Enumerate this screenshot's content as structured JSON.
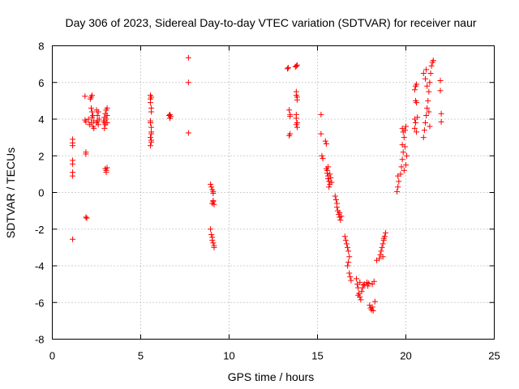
{
  "chart_data": {
    "type": "scatter",
    "title": "Day 306 of 2023, Sidereal Day-to-day VTEC variation (SDTVAR) for receiver naur",
    "xlabel": "GPS time / hours",
    "ylabel": "SDTVAR / TECUs",
    "xlim": [
      0,
      25
    ],
    "ylim": [
      -8,
      8
    ],
    "xticks": [
      0,
      5,
      10,
      15,
      20,
      25
    ],
    "yticks": [
      -8,
      -6,
      -4,
      -2,
      0,
      2,
      4,
      6,
      8
    ],
    "xtick_labels": [
      "0",
      "5",
      "10",
      "15",
      "20",
      "25"
    ],
    "ytick_labels": [
      "-8",
      "-6",
      "-4",
      "-2",
      "0",
      "2",
      "4",
      "6",
      "8"
    ],
    "grid": true,
    "marker": "+",
    "color": "#ff0000",
    "series": [
      {
        "name": "naur",
        "points": [
          [
            1.15,
            2.9
          ],
          [
            1.15,
            2.7
          ],
          [
            1.15,
            2.55
          ],
          [
            1.15,
            1.75
          ],
          [
            1.15,
            1.55
          ],
          [
            1.15,
            1.1
          ],
          [
            1.15,
            0.9
          ],
          [
            1.15,
            -2.55
          ],
          [
            1.85,
            5.25
          ],
          [
            1.85,
            3.95
          ],
          [
            1.9,
            3.85
          ],
          [
            1.9,
            2.2
          ],
          [
            1.9,
            2.1
          ],
          [
            1.9,
            -1.35
          ],
          [
            1.95,
            -1.4
          ],
          [
            2.05,
            4.0
          ],
          [
            2.1,
            3.7
          ],
          [
            2.15,
            5.1
          ],
          [
            2.2,
            5.2
          ],
          [
            2.25,
            5.3
          ],
          [
            2.2,
            4.6
          ],
          [
            2.25,
            4.4
          ],
          [
            2.25,
            4.1
          ],
          [
            2.2,
            3.8
          ],
          [
            2.3,
            3.6
          ],
          [
            2.35,
            3.9
          ],
          [
            2.3,
            4.2
          ],
          [
            2.35,
            3.5
          ],
          [
            2.5,
            4.5
          ],
          [
            2.55,
            4.2
          ],
          [
            2.55,
            3.9
          ],
          [
            2.6,
            4.4
          ],
          [
            2.65,
            4.0
          ],
          [
            2.5,
            3.8
          ],
          [
            2.6,
            3.7
          ],
          [
            2.9,
            3.9
          ],
          [
            2.95,
            4.1
          ],
          [
            2.95,
            3.8
          ],
          [
            3.0,
            4.3
          ],
          [
            3.05,
            4.5
          ],
          [
            3.05,
            4.0
          ],
          [
            3.1,
            4.6
          ],
          [
            3.1,
            4.2
          ],
          [
            3.0,
            3.7
          ],
          [
            2.95,
            3.5
          ],
          [
            3.1,
            3.8
          ],
          [
            3.0,
            1.3
          ],
          [
            3.05,
            1.2
          ],
          [
            3.05,
            1.1
          ],
          [
            3.1,
            1.35
          ],
          [
            5.55,
            5.3
          ],
          [
            5.55,
            5.1
          ],
          [
            5.55,
            4.9
          ],
          [
            5.6,
            4.6
          ],
          [
            5.6,
            4.4
          ],
          [
            5.6,
            5.2
          ],
          [
            5.55,
            3.9
          ],
          [
            5.55,
            3.8
          ],
          [
            5.6,
            3.55
          ],
          [
            5.6,
            3.3
          ],
          [
            5.6,
            3.2
          ],
          [
            5.55,
            3.0
          ],
          [
            5.6,
            2.85
          ],
          [
            5.6,
            2.75
          ],
          [
            5.55,
            2.55
          ],
          [
            6.6,
            4.2
          ],
          [
            6.65,
            4.05
          ],
          [
            6.7,
            4.15
          ],
          [
            6.65,
            4.25
          ],
          [
            7.7,
            7.35
          ],
          [
            7.7,
            6.0
          ],
          [
            7.7,
            3.25
          ],
          [
            8.95,
            0.45
          ],
          [
            9.0,
            0.3
          ],
          [
            9.05,
            0.15
          ],
          [
            9.1,
            0.05
          ],
          [
            9.1,
            -0.05
          ],
          [
            9.1,
            -0.5
          ],
          [
            9.05,
            -0.6
          ],
          [
            9.15,
            -0.65
          ],
          [
            9.1,
            -0.45
          ],
          [
            8.95,
            -2.0
          ],
          [
            9.0,
            -2.3
          ],
          [
            9.05,
            -2.45
          ],
          [
            9.05,
            -2.6
          ],
          [
            9.1,
            -2.75
          ],
          [
            9.15,
            -2.9
          ],
          [
            9.15,
            -3.0
          ],
          [
            13.3,
            6.75
          ],
          [
            13.35,
            6.8
          ],
          [
            13.4,
            4.5
          ],
          [
            13.45,
            4.25
          ],
          [
            13.45,
            4.15
          ],
          [
            13.45,
            3.2
          ],
          [
            13.4,
            3.1
          ],
          [
            13.75,
            6.85
          ],
          [
            13.8,
            6.9
          ],
          [
            13.85,
            6.95
          ],
          [
            13.8,
            5.5
          ],
          [
            13.8,
            5.3
          ],
          [
            13.85,
            5.2
          ],
          [
            13.85,
            5.05
          ],
          [
            13.8,
            4.25
          ],
          [
            13.8,
            4.05
          ],
          [
            13.85,
            3.8
          ],
          [
            13.8,
            3.7
          ],
          [
            13.85,
            3.55
          ],
          [
            15.2,
            4.25
          ],
          [
            15.2,
            3.2
          ],
          [
            15.25,
            2.0
          ],
          [
            15.3,
            1.85
          ],
          [
            15.45,
            2.8
          ],
          [
            15.5,
            2.65
          ],
          [
            15.5,
            1.3
          ],
          [
            15.55,
            1.2
          ],
          [
            15.55,
            1.05
          ],
          [
            15.6,
            0.9
          ],
          [
            15.6,
            0.75
          ],
          [
            15.65,
            0.6
          ],
          [
            15.7,
            0.45
          ],
          [
            15.6,
            1.4
          ],
          [
            15.7,
            1.0
          ],
          [
            15.75,
            0.8
          ],
          [
            15.8,
            0.55
          ],
          [
            15.65,
            0.3
          ],
          [
            16.0,
            -0.2
          ],
          [
            16.05,
            -0.4
          ],
          [
            16.1,
            -0.6
          ],
          [
            16.1,
            -0.8
          ],
          [
            16.15,
            -1.0
          ],
          [
            16.2,
            -1.2
          ],
          [
            16.25,
            -1.35
          ],
          [
            16.3,
            -1.5
          ],
          [
            16.25,
            -1.1
          ],
          [
            16.35,
            -1.3
          ],
          [
            16.55,
            -2.4
          ],
          [
            16.6,
            -2.6
          ],
          [
            16.65,
            -2.8
          ],
          [
            16.7,
            -3.0
          ],
          [
            16.75,
            -3.2
          ],
          [
            16.8,
            -3.5
          ],
          [
            16.75,
            -3.8
          ],
          [
            16.7,
            -4.0
          ],
          [
            16.8,
            -4.4
          ],
          [
            16.85,
            -4.6
          ],
          [
            16.9,
            -4.8
          ],
          [
            17.2,
            -4.7
          ],
          [
            17.25,
            -5.0
          ],
          [
            17.3,
            -5.2
          ],
          [
            17.35,
            -5.5
          ],
          [
            17.4,
            -5.7
          ],
          [
            17.45,
            -5.85
          ],
          [
            17.3,
            -5.6
          ],
          [
            17.5,
            -5.4
          ],
          [
            17.55,
            -5.2
          ],
          [
            17.6,
            -5.05
          ],
          [
            17.4,
            -4.9
          ],
          [
            17.65,
            -5.0
          ],
          [
            17.8,
            -4.9
          ],
          [
            17.85,
            -5.1
          ],
          [
            17.9,
            -4.95
          ],
          [
            17.95,
            -6.15
          ],
          [
            18.0,
            -6.3
          ],
          [
            18.05,
            -6.4
          ],
          [
            18.1,
            -6.25
          ],
          [
            18.15,
            -6.45
          ],
          [
            18.1,
            -5.0
          ],
          [
            18.2,
            -4.85
          ],
          [
            18.25,
            -5.95
          ],
          [
            18.35,
            -3.7
          ],
          [
            18.5,
            -3.6
          ],
          [
            18.55,
            -3.4
          ],
          [
            18.6,
            -3.2
          ],
          [
            18.65,
            -3.0
          ],
          [
            18.7,
            -2.8
          ],
          [
            18.75,
            -2.6
          ],
          [
            18.8,
            -2.4
          ],
          [
            18.85,
            -2.2
          ],
          [
            18.7,
            -3.5
          ],
          [
            18.75,
            -2.5
          ],
          [
            19.5,
            0.05
          ],
          [
            19.55,
            0.3
          ],
          [
            19.6,
            0.6
          ],
          [
            19.55,
            0.9
          ],
          [
            19.7,
            1.0
          ],
          [
            19.75,
            1.4
          ],
          [
            19.8,
            1.8
          ],
          [
            19.85,
            2.2
          ],
          [
            19.8,
            2.6
          ],
          [
            19.9,
            3.0
          ],
          [
            19.95,
            3.4
          ],
          [
            20.0,
            3.6
          ],
          [
            19.85,
            3.3
          ],
          [
            19.95,
            2.5
          ],
          [
            20.05,
            2.0
          ],
          [
            20.0,
            1.5
          ],
          [
            19.9,
            1.2
          ],
          [
            19.8,
            3.5
          ],
          [
            20.5,
            5.6
          ],
          [
            20.55,
            5.8
          ],
          [
            20.6,
            5.9
          ],
          [
            20.55,
            5.0
          ],
          [
            20.6,
            4.9
          ],
          [
            20.5,
            4.0
          ],
          [
            20.55,
            3.8
          ],
          [
            20.5,
            3.5
          ],
          [
            20.6,
            3.3
          ],
          [
            20.65,
            4.1
          ],
          [
            21.0,
            3.0
          ],
          [
            21.05,
            3.4
          ],
          [
            21.1,
            3.8
          ],
          [
            21.15,
            4.2
          ],
          [
            21.2,
            4.6
          ],
          [
            21.25,
            5.0
          ],
          [
            21.3,
            5.5
          ],
          [
            21.35,
            6.0
          ],
          [
            21.4,
            6.5
          ],
          [
            21.45,
            6.9
          ],
          [
            21.5,
            7.1
          ],
          [
            21.55,
            7.2
          ],
          [
            21.1,
            6.2
          ],
          [
            21.15,
            6.7
          ],
          [
            21.2,
            5.8
          ],
          [
            21.3,
            4.4
          ],
          [
            21.35,
            3.6
          ],
          [
            21.0,
            6.5
          ],
          [
            21.95,
            6.1
          ],
          [
            21.95,
            5.55
          ],
          [
            22.0,
            4.3
          ],
          [
            22.0,
            3.85
          ]
        ]
      }
    ]
  }
}
